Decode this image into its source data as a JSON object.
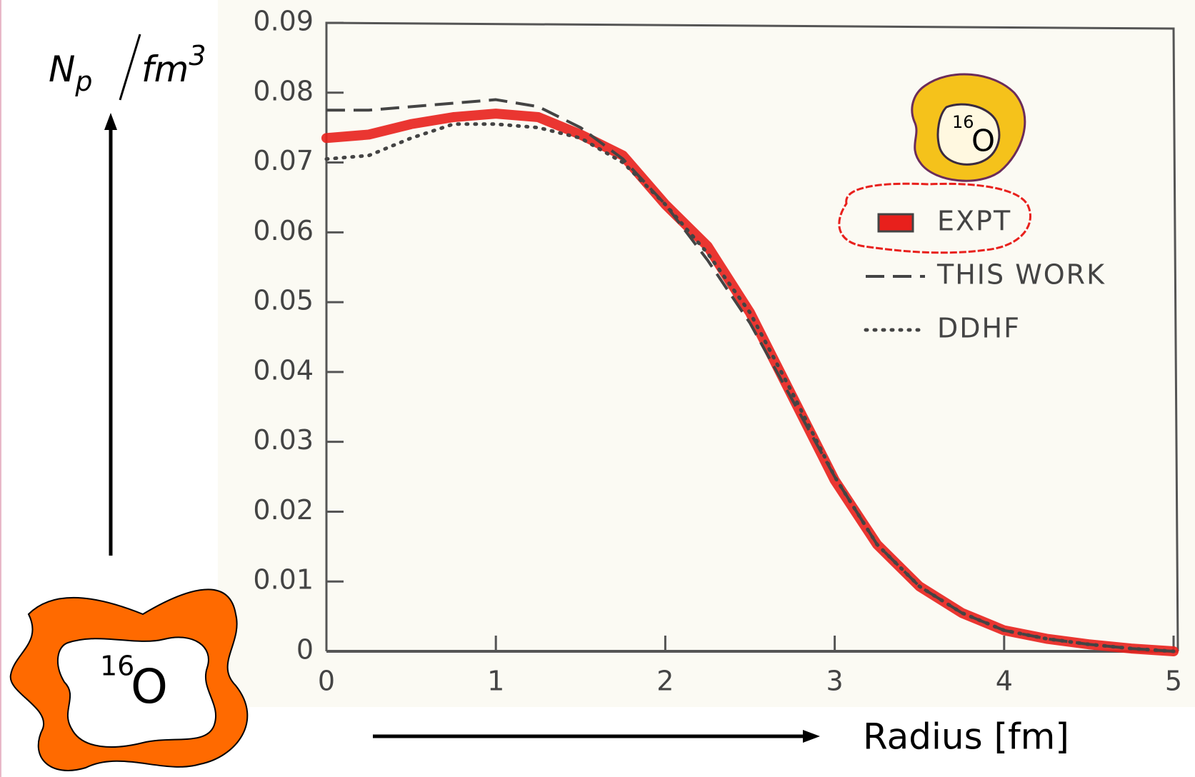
{
  "chart_data": {
    "type": "line",
    "x_label": "Radius [fm]",
    "y_label": {
      "base": "N",
      "sub": "p",
      "unit": "fm",
      "sup": "3"
    },
    "x": [
      0,
      0.25,
      0.5,
      0.75,
      1,
      1.25,
      1.5,
      1.75,
      2,
      2.25,
      2.5,
      2.75,
      3,
      3.25,
      3.5,
      3.75,
      4,
      4.25,
      4.5,
      4.75,
      5
    ],
    "series": [
      {
        "name": "EXPT",
        "color": "#e8201c",
        "style": "band",
        "values": [
          0.0735,
          0.074,
          0.0755,
          0.0765,
          0.077,
          0.0765,
          0.074,
          0.071,
          0.064,
          0.058,
          0.0485,
          0.0365,
          0.0245,
          0.0153,
          0.0093,
          0.0055,
          0.003,
          0.0018,
          0.001,
          0.0004,
          0
        ]
      },
      {
        "name": "THIS WORK",
        "color": "#444444",
        "style": "dashed",
        "values": [
          0.0775,
          0.0775,
          0.078,
          0.0785,
          0.079,
          0.078,
          0.075,
          0.0705,
          0.064,
          0.056,
          0.047,
          0.036,
          0.025,
          0.0153,
          0.0093,
          0.0055,
          0.003,
          0.0018,
          0.001,
          0.0004,
          0
        ]
      },
      {
        "name": "DDHF",
        "color": "#444444",
        "style": "dotted",
        "values": [
          0.0705,
          0.071,
          0.0735,
          0.0755,
          0.0755,
          0.075,
          0.0735,
          0.07,
          0.064,
          0.057,
          0.0485,
          0.037,
          0.025,
          0.0153,
          0.0093,
          0.0055,
          0.003,
          0.0018,
          0.001,
          0.0004,
          0
        ]
      }
    ],
    "xlim": [
      0,
      5
    ],
    "ylim": [
      0,
      0.09
    ],
    "xticks": [
      0,
      1,
      2,
      3,
      4,
      5
    ],
    "yticks": [
      0,
      0.01,
      0.02,
      0.03,
      0.04,
      0.05,
      0.06,
      0.07,
      0.08,
      0.09
    ],
    "badges": [
      {
        "mass": "16",
        "symbol": "O"
      },
      {
        "mass": "16",
        "symbol": "O"
      }
    ]
  }
}
